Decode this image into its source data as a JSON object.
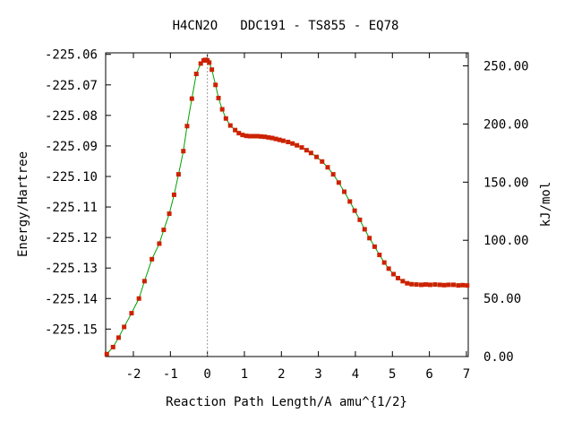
{
  "chart_data": {
    "type": "line",
    "title": "H4CN2O   DDC191 - TS855 - EQ78",
    "xlabel": "Reaction Path Length/A amu^{1/2}",
    "ylabel": "Energy/Hartree",
    "y2label": "kJ/mol",
    "xlim": [
      -2.75,
      7.05
    ],
    "ylim": [
      -225.159,
      -225.0595
    ],
    "y2lim": [
      0,
      261.2
    ],
    "x_ticks": [
      "-2",
      "-1",
      "0",
      "1",
      "2",
      "3",
      "4",
      "5",
      "6",
      "7"
    ],
    "y_ticks": [
      "-225.06",
      "-225.07",
      "-225.08",
      "-225.09",
      "-225.10",
      "-225.11",
      "-225.12",
      "-225.13",
      "-225.14",
      "-225.15"
    ],
    "y2_ticks": [
      "0.00",
      "50.00",
      "100.00",
      "150.00",
      "200.00",
      "250.00"
    ],
    "ts_marker_x": 0,
    "grid": false,
    "colors": {
      "line": "#00a000",
      "points": "#cc2200",
      "ts_line": "#999999"
    },
    "series": [
      {
        "x": [
          -2.72,
          -2.55,
          -2.4,
          -2.25,
          -2.05,
          -1.85,
          -1.7,
          -1.5,
          -1.3,
          -1.18,
          -1.03,
          -0.9,
          -0.78,
          -0.65,
          -0.55,
          -0.42,
          -0.3,
          -0.18,
          -0.1,
          -0.05,
          0.0,
          0.05,
          0.12,
          0.22,
          0.3,
          0.4,
          0.5,
          0.62,
          0.75,
          0.85,
          0.95,
          1.05,
          1.15,
          1.25,
          1.35,
          1.45,
          1.55,
          1.65,
          1.75,
          1.85,
          1.95,
          2.05,
          2.18,
          2.3,
          2.42,
          2.55,
          2.68,
          2.8,
          2.95,
          3.1,
          3.25,
          3.4,
          3.55,
          3.7,
          3.85,
          3.98,
          4.12,
          4.25,
          4.38,
          4.52,
          4.65,
          4.78,
          4.9,
          5.03,
          5.15,
          5.28,
          5.4,
          5.52,
          5.65,
          5.78,
          5.9,
          6.02,
          6.15,
          6.28,
          6.4,
          6.52,
          6.65,
          6.78,
          6.9,
          7.02
        ],
        "y": [
          -225.1582,
          -225.1559,
          -225.1528,
          -225.1493,
          -225.1448,
          -225.14,
          -225.1343,
          -225.1271,
          -225.122,
          -225.1175,
          -225.1122,
          -225.106,
          -225.0993,
          -225.0917,
          -225.0835,
          -225.0745,
          -225.0664,
          -225.063,
          -225.062,
          -225.0618,
          -225.062,
          -225.0627,
          -225.065,
          -225.07,
          -225.0743,
          -225.078,
          -225.081,
          -225.0833,
          -225.0848,
          -225.0858,
          -225.0864,
          -225.0867,
          -225.0868,
          -225.0868,
          -225.0868,
          -225.0869,
          -225.087,
          -225.0872,
          -225.0874,
          -225.0877,
          -225.088,
          -225.0883,
          -225.0887,
          -225.0892,
          -225.0898,
          -225.0905,
          -225.0914,
          -225.0923,
          -225.0936,
          -225.0951,
          -225.097,
          -225.0993,
          -225.102,
          -225.105,
          -225.1082,
          -225.1112,
          -225.1142,
          -225.1173,
          -225.1202,
          -225.123,
          -225.1257,
          -225.1282,
          -225.1302,
          -225.132,
          -225.1333,
          -225.1343,
          -225.135,
          -225.1353,
          -225.1354,
          -225.1355,
          -225.1354,
          -225.1355,
          -225.1354,
          -225.1355,
          -225.1356,
          -225.1355,
          -225.1355,
          -225.1357,
          -225.1356,
          -225.1357
        ]
      }
    ]
  }
}
